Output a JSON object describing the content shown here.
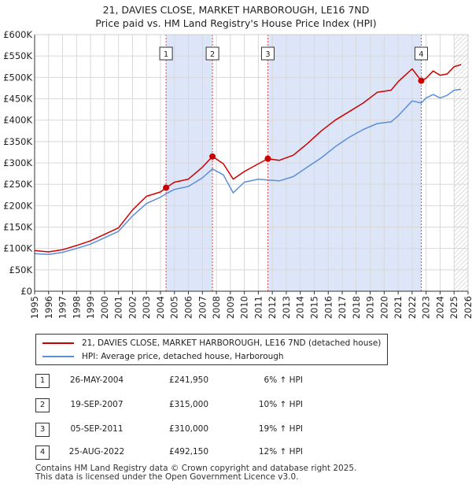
{
  "chart_data": {
    "type": "line",
    "title": "21, DAVIES CLOSE, MARKET HARBOROUGH, LE16 7ND",
    "subtitle": "Price paid vs. HM Land Registry's House Price Index (HPI)",
    "xlabel": "",
    "ylabel": "",
    "xlim": [
      1995,
      2026
    ],
    "ylim": [
      0,
      600000
    ],
    "x_ticks": [
      "1995",
      "1996",
      "1997",
      "1998",
      "1999",
      "2000",
      "2001",
      "2002",
      "2003",
      "2004",
      "2005",
      "2006",
      "2007",
      "2008",
      "2009",
      "2010",
      "2011",
      "2012",
      "2013",
      "2014",
      "2015",
      "2016",
      "2017",
      "2018",
      "2019",
      "2020",
      "2021",
      "2022",
      "2023",
      "2024",
      "2025",
      "2026"
    ],
    "y_ticks": [
      {
        "value": 0,
        "label": "£0"
      },
      {
        "value": 50000,
        "label": "£50K"
      },
      {
        "value": 100000,
        "label": "£100K"
      },
      {
        "value": 150000,
        "label": "£150K"
      },
      {
        "value": 200000,
        "label": "£200K"
      },
      {
        "value": 250000,
        "label": "£250K"
      },
      {
        "value": 300000,
        "label": "£300K"
      },
      {
        "value": 350000,
        "label": "£350K"
      },
      {
        "value": 400000,
        "label": "£400K"
      },
      {
        "value": 450000,
        "label": "£450K"
      },
      {
        "value": 500000,
        "label": "£500K"
      },
      {
        "value": 550000,
        "label": "£550K"
      },
      {
        "value": 600000,
        "label": "£600K"
      }
    ],
    "grid": true,
    "shaded_periods": [
      [
        2004.4,
        2007.72
      ],
      [
        2011.68,
        2022.65
      ]
    ],
    "forecast_start": 2025.0,
    "series": [
      {
        "name": "21, DAVIES CLOSE, MARKET HARBOROUGH, LE16 7ND (detached house)",
        "color": "#cc0000",
        "x": [
          1995.0,
          1996.0,
          1997.0,
          1998.0,
          1999.0,
          2000.0,
          2001.0,
          2002.0,
          2003.0,
          2004.0,
          2004.4,
          2005.0,
          2006.0,
          2007.0,
          2007.72,
          2008.5,
          2009.2,
          2010.0,
          2011.0,
          2011.68,
          2012.5,
          2013.5,
          2014.5,
          2015.5,
          2016.5,
          2017.5,
          2018.5,
          2019.5,
          2020.5,
          2021.0,
          2022.0,
          2022.65,
          2023.0,
          2023.5,
          2024.0,
          2024.5,
          2025.0,
          2025.5
        ],
        "values": [
          95000,
          92000,
          97000,
          107000,
          118000,
          133000,
          148000,
          190000,
          222000,
          232000,
          241950,
          255000,
          262000,
          290000,
          315000,
          298000,
          262000,
          280000,
          298000,
          310000,
          306000,
          318000,
          345000,
          375000,
          400000,
          420000,
          440000,
          465000,
          470000,
          490000,
          520000,
          492150,
          498000,
          515000,
          505000,
          508000,
          525000,
          530000
        ]
      },
      {
        "name": "HPI: Average price, detached house, Harborough",
        "color": "#5b8ed6",
        "x": [
          1995.0,
          1996.0,
          1997.0,
          1998.0,
          1999.0,
          2000.0,
          2001.0,
          2002.0,
          2003.0,
          2004.0,
          2004.4,
          2005.0,
          2006.0,
          2007.0,
          2007.72,
          2008.5,
          2009.2,
          2010.0,
          2011.0,
          2011.68,
          2012.5,
          2013.5,
          2014.5,
          2015.5,
          2016.5,
          2017.5,
          2018.5,
          2019.5,
          2020.5,
          2021.0,
          2022.0,
          2022.65,
          2023.0,
          2023.5,
          2024.0,
          2024.5,
          2025.0,
          2025.5
        ],
        "values": [
          88000,
          86000,
          91000,
          100000,
          110000,
          125000,
          140000,
          176000,
          205000,
          220000,
          228000,
          238000,
          245000,
          265000,
          286000,
          272000,
          230000,
          255000,
          262000,
          260000,
          258000,
          268000,
          290000,
          312000,
          338000,
          360000,
          378000,
          392000,
          396000,
          410000,
          445000,
          440000,
          452000,
          460000,
          452000,
          458000,
          470000,
          472000
        ]
      }
    ],
    "sales": [
      {
        "label": "1",
        "x": 2004.4,
        "value": 241950
      },
      {
        "label": "2",
        "x": 2007.72,
        "value": 315000
      },
      {
        "label": "3",
        "x": 2011.68,
        "value": 310000
      },
      {
        "label": "4",
        "x": 2022.65,
        "value": 492150
      }
    ]
  },
  "legend": {
    "property_label": "21, DAVIES CLOSE, MARKET HARBOROUGH, LE16 7ND (detached house)",
    "hpi_label": "HPI: Average price, detached house, Harborough"
  },
  "transactions": [
    {
      "num": "1",
      "date": "26-MAY-2004",
      "price": "£241,950",
      "hpi": "6% ↑ HPI"
    },
    {
      "num": "2",
      "date": "19-SEP-2007",
      "price": "£315,000",
      "hpi": "10% ↑ HPI"
    },
    {
      "num": "3",
      "date": "05-SEP-2011",
      "price": "£310,000",
      "hpi": "19% ↑ HPI"
    },
    {
      "num": "4",
      "date": "25-AUG-2022",
      "price": "£492,150",
      "hpi": "12% ↑ HPI"
    }
  ],
  "footer": {
    "line1": "Contains HM Land Registry data © Crown copyright and database right 2025.",
    "line2": "This data is licensed under the Open Government Licence v3.0."
  },
  "colors": {
    "property": "#cc0000",
    "hpi": "#5b8ed6",
    "shade": "#dde6f8",
    "grid": "#d8d8d8"
  }
}
